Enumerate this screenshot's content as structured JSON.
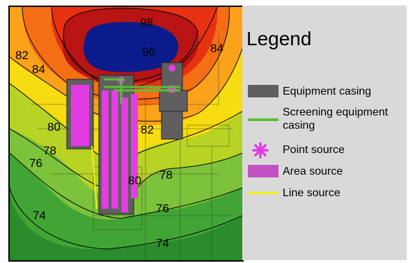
{
  "map": {
    "contour_labels": [
      "98",
      "96",
      "84",
      "82",
      "84",
      "82",
      "80",
      "78",
      "76",
      "78",
      "76",
      "74",
      "74",
      "80"
    ],
    "colors": {
      "blue_core": "#0a1c8c",
      "dark_red": "#b81414",
      "red": "#e63212",
      "orange": "#f46e14",
      "light_orange": "#f9a21a",
      "yellow": "#f6dc10",
      "yellow_green": "#b9d324",
      "light_green": "#7cc23a",
      "green": "#41a535",
      "dark_green": "#2a8c2a"
    }
  },
  "legend": {
    "title": "Legend",
    "items": [
      {
        "label": "Equipment casing",
        "icon": "gray-rectangle",
        "color": "#5f5f5f"
      },
      {
        "label": "Screening equipment casing",
        "icon": "green-line",
        "color": "#5cbd3a"
      },
      {
        "label": "Point source",
        "icon": "magenta-asterisk",
        "color": "#e23ce2"
      },
      {
        "label": "Area source",
        "icon": "magenta-rectangle",
        "color": "#c251c2"
      },
      {
        "label": "Line source",
        "icon": "yellow-line",
        "color": "#f2ee14"
      }
    ]
  }
}
